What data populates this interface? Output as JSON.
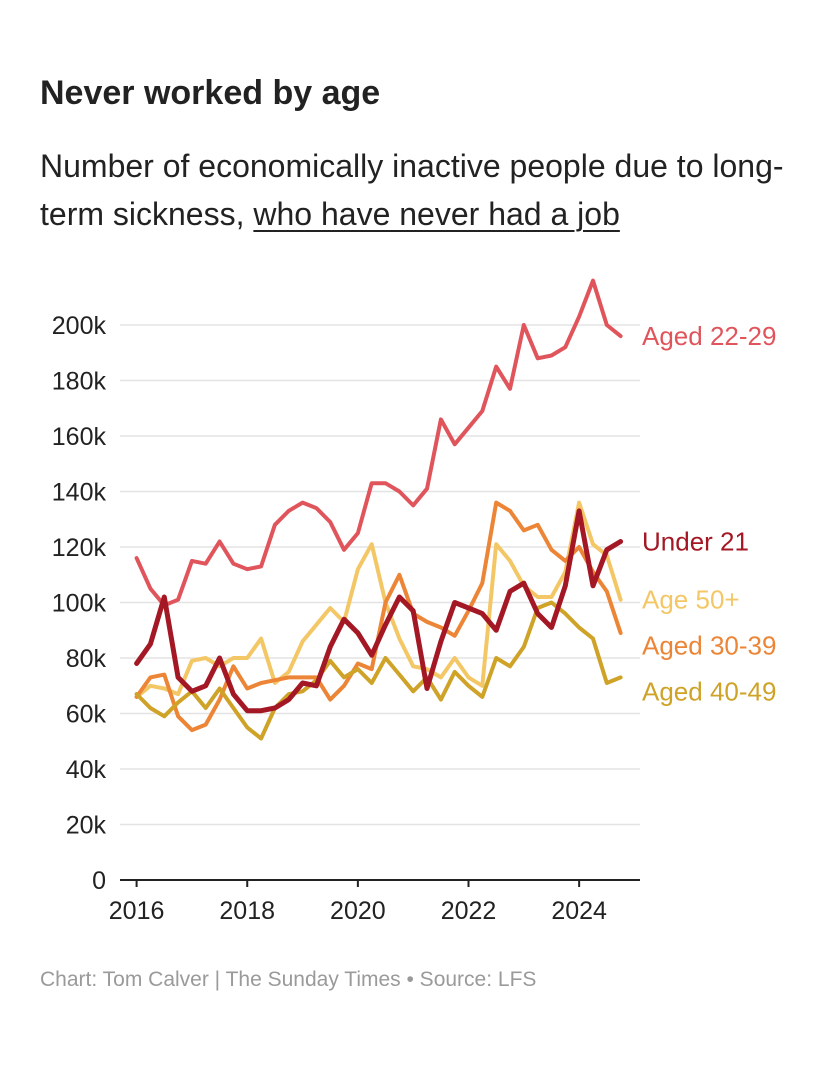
{
  "header": {
    "title": "Never worked by age",
    "subtitle_lead": "Number of economically inactive people due to long-term sickness, ",
    "subtitle_link": "who have never had a job"
  },
  "footer": {
    "credit": "Chart: Tom Calver | The Sunday Times • Source: LFS"
  },
  "chart_data": {
    "type": "line",
    "x_start": 2016,
    "x_step": 0.25,
    "xlim": [
      2015.7,
      2025.1
    ],
    "ylim": [
      0,
      200000
    ],
    "x_ticks": [
      2016,
      2018,
      2020,
      2022,
      2024
    ],
    "x_tick_labels": [
      "2016",
      "2018",
      "2020",
      "2022",
      "2024"
    ],
    "y_ticks": [
      0,
      20000,
      40000,
      60000,
      80000,
      100000,
      120000,
      140000,
      160000,
      180000,
      200000
    ],
    "y_tick_labels": [
      "0",
      "20k",
      "40k",
      "60k",
      "80k",
      "100k",
      "120k",
      "140k",
      "160k",
      "180k",
      "200k"
    ],
    "grid": true,
    "legend": "direct labels at line ends",
    "series": [
      {
        "name": "Aged 22-29",
        "color": "#e0555c",
        "width": 4,
        "values": [
          116000,
          105000,
          99000,
          101000,
          115000,
          114000,
          122000,
          114000,
          112000,
          113000,
          128000,
          133000,
          136000,
          134000,
          129000,
          119000,
          125000,
          143000,
          143000,
          140000,
          135000,
          141000,
          166000,
          157000,
          163000,
          169000,
          185000,
          177000,
          200000,
          188000,
          189000,
          192000,
          203000,
          216000,
          200000,
          196000
        ]
      },
      {
        "name": "Age 50+",
        "color": "#f4c766",
        "width": 4,
        "values": [
          66000,
          70000,
          69000,
          67000,
          79000,
          80000,
          77000,
          80000,
          80000,
          87000,
          71000,
          75000,
          86000,
          92000,
          98000,
          93000,
          112000,
          121000,
          100000,
          87000,
          77000,
          76000,
          73000,
          80000,
          73000,
          70000,
          121000,
          115000,
          106000,
          102000,
          102000,
          111000,
          136000,
          121000,
          117000,
          101000
        ]
      },
      {
        "name": "Aged 30-39",
        "color": "#ec8536",
        "width": 4,
        "values": [
          66000,
          73000,
          74000,
          59000,
          54000,
          56000,
          65000,
          77000,
          69000,
          71000,
          72000,
          73000,
          73000,
          73000,
          65000,
          70000,
          78000,
          76000,
          100000,
          110000,
          96000,
          93000,
          91000,
          88000,
          97000,
          107000,
          136000,
          133000,
          126000,
          128000,
          119000,
          115000,
          120000,
          111000,
          104000,
          89000
        ]
      },
      {
        "name": "Aged 40-49",
        "color": "#cfa328",
        "width": 4,
        "values": [
          67000,
          62000,
          59000,
          64000,
          68000,
          62000,
          69000,
          62000,
          55000,
          51000,
          62000,
          67000,
          68000,
          72000,
          79000,
          73000,
          76000,
          71000,
          80000,
          74000,
          68000,
          73000,
          65000,
          75000,
          70000,
          66000,
          80000,
          77000,
          84000,
          98000,
          100000,
          96000,
          91000,
          87000,
          71000,
          73000
        ]
      },
      {
        "name": "Under 21",
        "color": "#a31824",
        "width": 5,
        "values": [
          78000,
          85000,
          102000,
          73000,
          68000,
          70000,
          80000,
          67000,
          61000,
          61000,
          62000,
          65000,
          71000,
          70000,
          84000,
          94000,
          89000,
          81000,
          92000,
          102000,
          97000,
          69000,
          86000,
          100000,
          98000,
          96000,
          90000,
          104000,
          107000,
          96000,
          91000,
          106000,
          133000,
          106000,
          119000,
          122000
        ]
      }
    ]
  }
}
